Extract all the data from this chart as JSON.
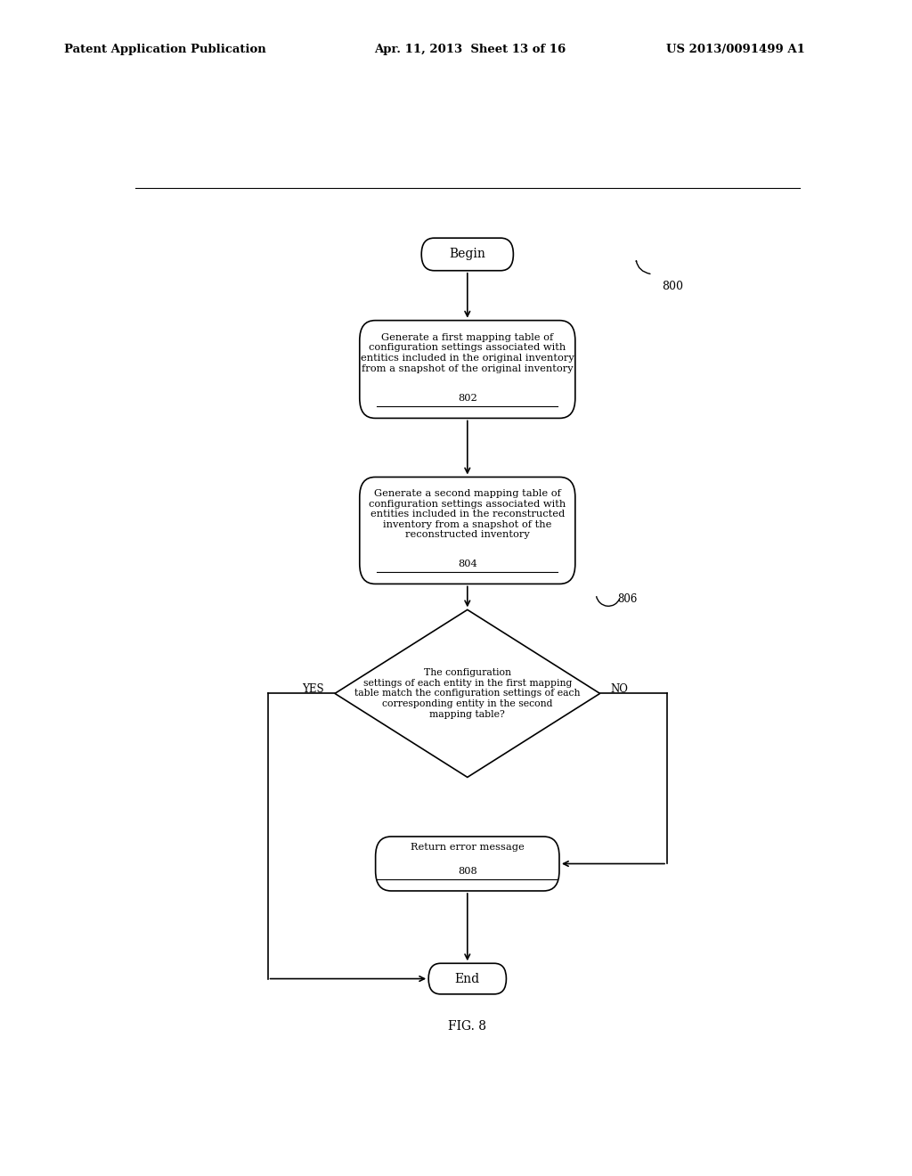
{
  "bg_color": "#ffffff",
  "header_left": "Patent Application Publication",
  "header_mid": "Apr. 11, 2013  Sheet 13 of 16",
  "header_right": "US 2013/0091499 A1",
  "fig_label": "FIG. 8",
  "diagram_label": "800",
  "begin_text": "Begin",
  "end_text": "End",
  "box802_lines": [
    "Generate a first mapping table of",
    "configuration settings associated with",
    "entitics included in the original inventory",
    "from a snapshot of the original inventory"
  ],
  "box802_label": "802",
  "box804_lines": [
    "Generate a second mapping table of",
    "configuration settings associated with",
    "entities included in the reconstructed",
    "inventory from a snapshot of the",
    "reconstructed inventory"
  ],
  "box804_label": "804",
  "diamond806_lines": [
    "The configuration",
    "settings of each entity in the first mapping",
    "table match the configuration settings of each",
    "corresponding entity in the second",
    "mapping table?"
  ],
  "diamond806_label": "806",
  "box808_lines": [
    "Return error message"
  ],
  "box808_label": "808",
  "yes_label": "YES",
  "no_label": "NO"
}
